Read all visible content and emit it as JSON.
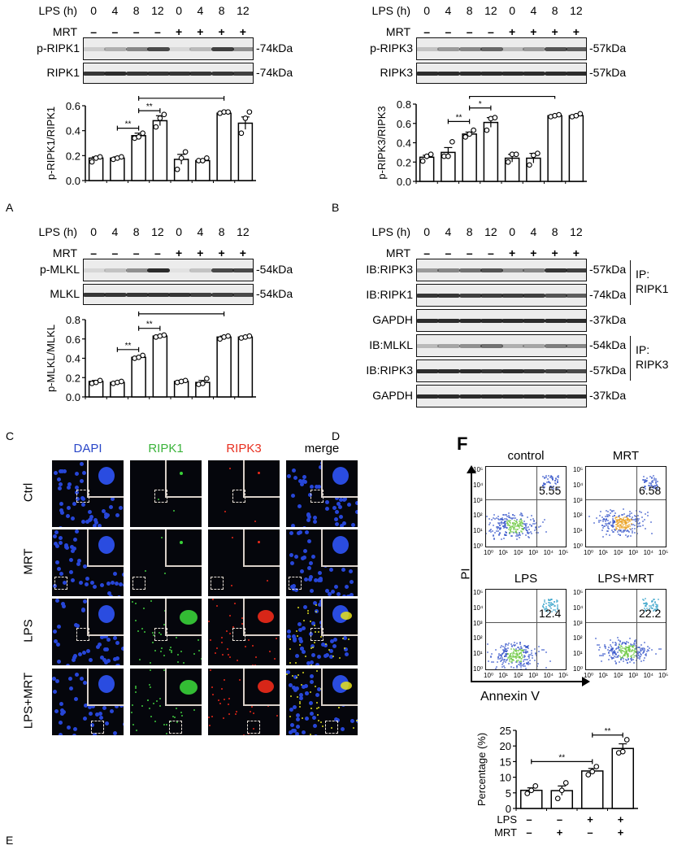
{
  "panel_labels": {
    "A": "A",
    "B": "B",
    "C": "C",
    "D": "D",
    "E": "E",
    "F": "F"
  },
  "conditions": {
    "lps_label": "LPS (h)",
    "mrt_label": "MRT",
    "lps_hours": [
      "0",
      "4",
      "8",
      "12",
      "0",
      "4",
      "8",
      "12"
    ],
    "mrt_signs": [
      "–",
      "–",
      "–",
      "–",
      "+",
      "+",
      "+",
      "+"
    ]
  },
  "panel_A": {
    "blots": [
      {
        "name": "p-RIPK1",
        "kda": "-74kDa"
      },
      {
        "name": "RIPK1",
        "kda": "-74kDa"
      }
    ]
  },
  "panel_B_top": {
    "blots": [
      {
        "name": "p-RIPK3",
        "kda": "-57kDa"
      },
      {
        "name": "RIPK3",
        "kda": "-57kDa"
      }
    ]
  },
  "panel_A_lower": {
    "blots": [
      {
        "name": "p-MLKL",
        "kda": "-54kDa"
      },
      {
        "name": "MLKL",
        "kda": "-54kDa"
      }
    ]
  },
  "panel_B_lower": {
    "blots": [
      {
        "name": "IB:RIPK3",
        "kda": "-57kDa"
      },
      {
        "name": "IB:RIPK1",
        "kda": "-74kDa"
      },
      {
        "name": "GAPDH",
        "kda": "-37kDa"
      },
      {
        "name": "IB:MLKL",
        "kda": "-54kDa"
      },
      {
        "name": "IB:RIPK3",
        "kda": "-57kDa"
      },
      {
        "name": "GAPDH",
        "kda": "-37kDa"
      }
    ],
    "ip_groups": [
      {
        "label_line1": "IP:",
        "label_line2": "RIPK1"
      },
      {
        "label_line1": "IP:",
        "label_line2": "RIPK3"
      }
    ]
  },
  "panel_if": {
    "columns": [
      {
        "label": "DAPI",
        "color": "#2a47c8"
      },
      {
        "label": "RIPK1",
        "color": "#3bb43b"
      },
      {
        "label": "RIPK3",
        "color": "#e83020"
      },
      {
        "label": "merge",
        "color": "#000000"
      }
    ],
    "rows": [
      "Ctrl",
      "MRT",
      "LPS",
      "LPS+MRT"
    ]
  },
  "panel_F": {
    "plots": [
      {
        "title": "control",
        "value": "5.55"
      },
      {
        "title": "MRT",
        "value": "6.58"
      },
      {
        "title": "LPS",
        "value": "12.4"
      },
      {
        "title": "LPS+MRT",
        "value": "22.2"
      }
    ],
    "y_axis_label": "PI",
    "x_axis_label": "Annexin V",
    "ticks": [
      "10⁰",
      "10¹",
      "10²",
      "10³",
      "10⁴",
      "10⁵"
    ],
    "lps_row_label": "LPS",
    "mrt_row_label": "MRT",
    "lps_signs": [
      "–",
      "–",
      "+",
      "+"
    ],
    "mrt_signs": [
      "–",
      "+",
      "–",
      "+"
    ]
  },
  "chart_data": [
    {
      "type": "bar",
      "title": "p-RIPK1/RIPK1",
      "ylabel": "p-RIPK1/RIPK1",
      "categories": [
        "LPS 0h",
        "LPS 4h",
        "LPS 8h",
        "LPS 12h",
        "LPS 0h +MRT",
        "LPS 4h +MRT",
        "LPS 8h +MRT",
        "LPS 12h +MRT"
      ],
      "values": [
        0.18,
        0.18,
        0.36,
        0.48,
        0.17,
        0.16,
        0.54,
        0.46
      ],
      "errors": [
        0.01,
        0.01,
        0.02,
        0.04,
        0.04,
        0.01,
        0.01,
        0.05
      ],
      "points": [
        [
          0.15,
          0.18,
          0.19
        ],
        [
          0.17,
          0.18,
          0.19
        ],
        [
          0.34,
          0.35,
          0.38
        ],
        [
          0.43,
          0.5,
          0.53
        ],
        [
          0.09,
          0.18,
          0.23
        ],
        [
          0.16,
          0.16,
          0.18
        ],
        [
          0.54,
          0.55,
          0.55
        ],
        [
          0.38,
          0.5,
          0.55
        ]
      ],
      "ylim": [
        0,
        0.6
      ],
      "yticks": [
        "0.0",
        "0.2",
        "0.4",
        "0.6"
      ],
      "significance": [
        {
          "from": 2,
          "to": 3,
          "label": "**",
          "level": 0.42
        },
        {
          "from": 3,
          "to": 4,
          "label": "**",
          "level": 0.56
        },
        {
          "from": 3,
          "to": 7,
          "label": "**",
          "level": 0.66
        }
      ]
    },
    {
      "type": "bar",
      "title": "p-RIPK3/RIPK3",
      "ylabel": "p-RIPK3/RIPK3",
      "categories": [
        "LPS 0h",
        "LPS 4h",
        "LPS 8h",
        "LPS 12h",
        "LPS 0h +MRT",
        "LPS 4h +MRT",
        "LPS 8h +MRT",
        "LPS 12h +MRT"
      ],
      "values": [
        0.25,
        0.3,
        0.49,
        0.61,
        0.24,
        0.24,
        0.68,
        0.68
      ],
      "errors": [
        0.02,
        0.05,
        0.02,
        0.05,
        0.04,
        0.05,
        0.01,
        0.01
      ],
      "points": [
        [
          0.21,
          0.26,
          0.28
        ],
        [
          0.26,
          0.26,
          0.41
        ],
        [
          0.46,
          0.49,
          0.53
        ],
        [
          0.53,
          0.65,
          0.66
        ],
        [
          0.2,
          0.28,
          0.28
        ],
        [
          0.17,
          0.27,
          0.29
        ],
        [
          0.67,
          0.68,
          0.69
        ],
        [
          0.67,
          0.68,
          0.7
        ]
      ],
      "ylim": [
        0,
        0.8
      ],
      "yticks": [
        "0.0",
        "0.2",
        "0.4",
        "0.6",
        "0.8"
      ],
      "significance": [
        {
          "from": 2,
          "to": 3,
          "label": "**",
          "level": 0.62
        },
        {
          "from": 3,
          "to": 4,
          "label": "*",
          "level": 0.76
        },
        {
          "from": 3,
          "to": 7,
          "label": "**",
          "level": 0.88
        }
      ]
    },
    {
      "type": "bar",
      "title": "p-MLKL/MLKL",
      "ylabel": "p-MLKL/MLKL",
      "categories": [
        "LPS 0h",
        "LPS 4h",
        "LPS 8h",
        "LPS 12h",
        "LPS 0h +MRT",
        "LPS 4h +MRT",
        "LPS 8h +MRT",
        "LPS 12h +MRT"
      ],
      "values": [
        0.16,
        0.15,
        0.41,
        0.63,
        0.16,
        0.15,
        0.62,
        0.62
      ],
      "errors": [
        0.01,
        0.01,
        0.01,
        0.01,
        0.01,
        0.02,
        0.01,
        0.01
      ],
      "points": [
        [
          0.14,
          0.15,
          0.17
        ],
        [
          0.14,
          0.15,
          0.16
        ],
        [
          0.4,
          0.41,
          0.43
        ],
        [
          0.62,
          0.63,
          0.64
        ],
        [
          0.15,
          0.16,
          0.17
        ],
        [
          0.13,
          0.14,
          0.19
        ],
        [
          0.6,
          0.62,
          0.63
        ],
        [
          0.61,
          0.62,
          0.63
        ]
      ],
      "ylim": [
        0,
        0.8
      ],
      "yticks": [
        "0.0",
        "0.2",
        "0.4",
        "0.6",
        "0.8"
      ],
      "significance": [
        {
          "from": 2,
          "to": 3,
          "label": "**",
          "level": 0.49
        },
        {
          "from": 3,
          "to": 4,
          "label": "**",
          "level": 0.71
        },
        {
          "from": 3,
          "to": 7,
          "label": "**",
          "level": 0.86
        }
      ]
    },
    {
      "type": "bar",
      "title": "Percentage (%)",
      "ylabel": "Percentage (%)",
      "categories": [
        "LPS– MRT–",
        "LPS– MRT+",
        "LPS+ MRT–",
        "LPS+ MRT+"
      ],
      "values": [
        5.8,
        5.7,
        12.0,
        19.2
      ],
      "errors": [
        0.8,
        1.5,
        0.8,
        1.5
      ],
      "points": [
        [
          4.8,
          5.8,
          7.2
        ],
        [
          3.2,
          5.8,
          8.2
        ],
        [
          10.8,
          11.8,
          13.4
        ],
        [
          17.8,
          18.2,
          22.0
        ]
      ],
      "ylim": [
        0,
        25
      ],
      "yticks": [
        "0",
        "5",
        "10",
        "15",
        "20",
        "25"
      ],
      "significance": [
        {
          "from": 1,
          "to": 3,
          "label": "**",
          "level": 15
        },
        {
          "from": 3,
          "to": 4,
          "label": "**",
          "level": 23.5
        }
      ]
    }
  ]
}
